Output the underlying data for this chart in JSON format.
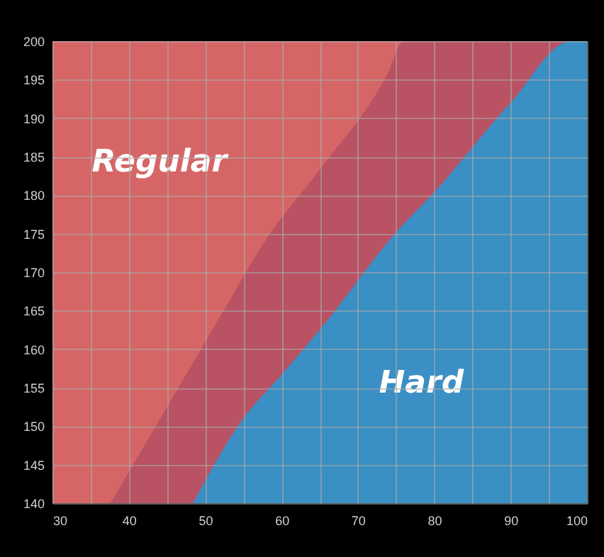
{
  "chart_data": {
    "type": "area",
    "xlim": [
      30,
      100
    ],
    "ylim": [
      140,
      200
    ],
    "xticks": [
      30,
      {
        "value": 35,
        "label": null
      },
      40,
      {
        "value": 45,
        "label": null
      },
      50,
      {
        "value": 55,
        "label": null
      },
      60,
      {
        "value": 65,
        "label": null
      },
      70,
      {
        "value": 75,
        "label": null
      },
      80,
      {
        "value": 85,
        "label": null
      },
      90,
      {
        "value": 95,
        "label": null
      },
      100
    ],
    "yticks": [
      140,
      145,
      150,
      155,
      160,
      165,
      170,
      175,
      180,
      185,
      190,
      195,
      200
    ],
    "grid": true,
    "series": [
      {
        "color": "#d66666",
        "x": [
          30,
          100
        ],
        "values": [
          200,
          200
        ]
      },
      {
        "color": "#b95263",
        "x": [
          37.6,
          45,
          52.3,
          57.8,
          64.9,
          73.8,
          76,
          100
        ],
        "values": [
          140,
          152.5,
          164.8,
          174,
          183.2,
          195.6,
          200,
          200
        ]
      },
      {
        "color": "#3a8fc4",
        "x": [
          48.4,
          54.7,
          60.2,
          65.8,
          75.1,
          80.1,
          89.9,
          97.9,
          100
        ],
        "values": [
          140,
          150.6,
          156.9,
          163.5,
          175.3,
          180.5,
          191.9,
          200,
          200
        ]
      }
    ],
    "annotations": [
      "Regular",
      "Hard"
    ]
  }
}
